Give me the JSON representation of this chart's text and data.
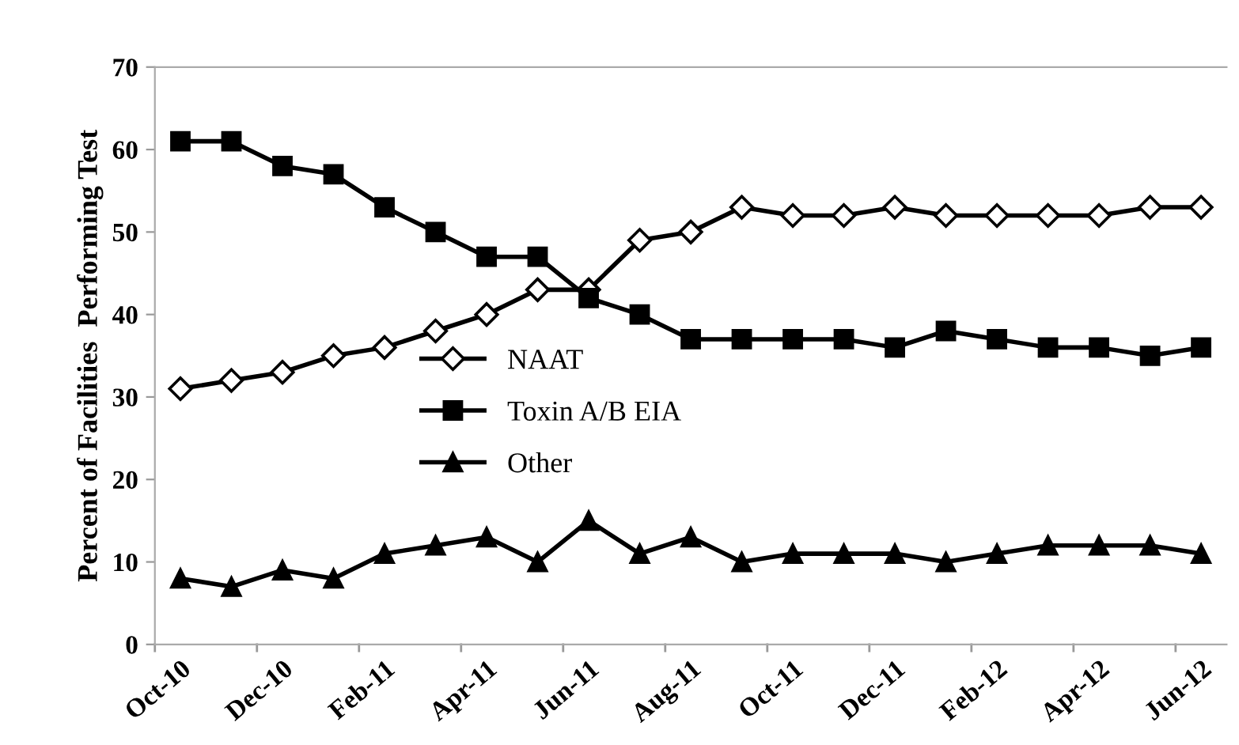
{
  "chart_data": {
    "type": "line",
    "ylabel": "Percent of Facilities  Performing Test",
    "categories": [
      "Oct-10",
      null,
      "Dec-10",
      null,
      "Feb-11",
      null,
      "Apr-11",
      null,
      "Jun-11",
      null,
      "Aug-11",
      null,
      "Oct-11",
      null,
      "Dec-11",
      null,
      "Feb-12",
      null,
      "Apr-12",
      null,
      "Jun-12"
    ],
    "ylim": [
      0,
      70
    ],
    "yticks": [
      0,
      10,
      20,
      30,
      40,
      50,
      60,
      70
    ],
    "grid": false,
    "legend": "center",
    "line_style": "solid",
    "series": [
      {
        "name": "NAAT",
        "color": "#000000",
        "marker": "diamond",
        "values": [
          31,
          32,
          33,
          35,
          36,
          38,
          40,
          43,
          43,
          49,
          50,
          53,
          52,
          52,
          53,
          52,
          52,
          52,
          52,
          53,
          53
        ]
      },
      {
        "name": "Toxin A/B EIA",
        "color": "#000000",
        "marker": "square",
        "values": [
          61,
          61,
          58,
          57,
          53,
          50,
          47,
          47,
          42,
          40,
          37,
          37,
          37,
          37,
          36,
          38,
          37,
          36,
          36,
          35,
          36
        ]
      },
      {
        "name": "Other",
        "color": "#000000",
        "marker": "triangle",
        "values": [
          8,
          7,
          9,
          8,
          11,
          12,
          13,
          10,
          15,
          11,
          13,
          10,
          11,
          11,
          11,
          10,
          11,
          12,
          12,
          12,
          11
        ]
      }
    ]
  }
}
